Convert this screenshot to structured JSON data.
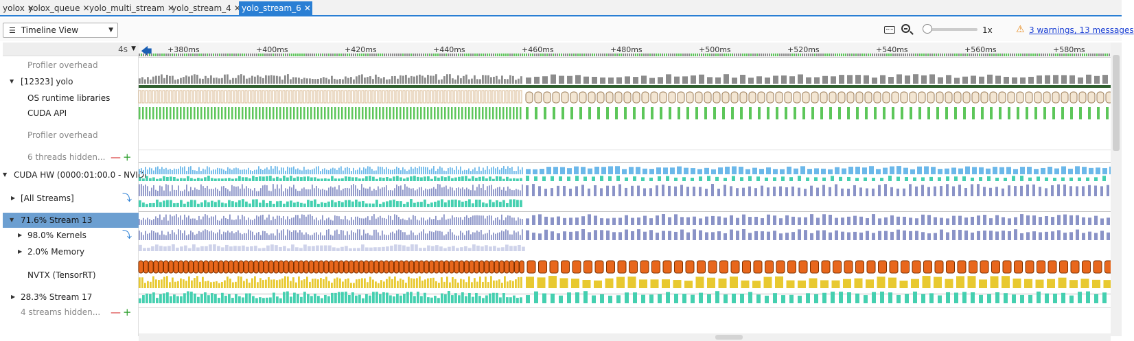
{
  "tabs": [
    {
      "label": "yolox",
      "active": false
    },
    {
      "label": "yolox_queue",
      "active": false
    },
    {
      "label": "yolo_multi_stream",
      "active": false
    },
    {
      "label": "yolo_stream_4",
      "active": false
    },
    {
      "label": "yolo_stream_6",
      "active": true
    }
  ],
  "tab_close_glyph": "✕",
  "toolbar": {
    "view_label": "Timeline View",
    "view_icon": "menu-icon",
    "zoom_value": "1x",
    "zoom_level": 0,
    "warnings_text": "3 warnings, 13 messages",
    "warning_icon": "warning-triangle-icon"
  },
  "timeline": {
    "scale_label": "4s",
    "ruler_ticks": [
      "+380ms",
      "+400ms",
      "+420ms",
      "+440ms",
      "+460ms",
      "+480ms",
      "+500ms",
      "+520ms",
      "+540ms",
      "+560ms",
      "+580ms"
    ]
  },
  "rows": [
    {
      "label": "Profiler overhead",
      "type": "gray"
    },
    {
      "label": "[12323] yolo",
      "type": "expanded"
    },
    {
      "label": "OS runtime libraries",
      "type": "plain"
    },
    {
      "label": "CUDA API",
      "type": "plain"
    },
    {
      "label": "Profiler overhead",
      "type": "gray"
    },
    {
      "label": "6 threads hidden...",
      "type": "hidden"
    },
    {
      "label": "CUDA HW (0000:01:00.0 - NVIDI",
      "type": "expanded"
    },
    {
      "label": "[All Streams]",
      "type": "collapsed"
    },
    {
      "label": "71.6% Stream 13",
      "type": "selected"
    },
    {
      "label": "98.0% Kernels",
      "type": "collapsed"
    },
    {
      "label": "2.0% Memory",
      "type": "collapsed"
    },
    {
      "label": "NVTX (TensorRT)",
      "type": "plain"
    },
    {
      "label": "28.3% Stream 17",
      "type": "collapsed"
    },
    {
      "label": "4 streams hidden...",
      "type": "hidden"
    }
  ],
  "colors": {
    "accent": "#2a7fd4",
    "selected_row": "#6c9fd1",
    "thread_gray": "#8c8c8c",
    "osrt": "#f3e6d3",
    "cuda_api": "#5dc65a",
    "hw_blue": "#6cb8ea",
    "teal": "#45d0b0",
    "kernel": "#8a93c7",
    "nvtx_orange": "#e8671c",
    "nvtx_yellow": "#e8c930",
    "remove": "#d63030",
    "add": "#2ea02e"
  }
}
